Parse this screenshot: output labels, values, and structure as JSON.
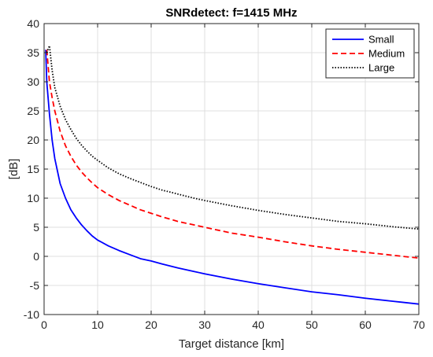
{
  "chart_data": {
    "type": "line",
    "title": "SNRdetect: f=1415 MHz",
    "xlabel": "Target distance [km]",
    "ylabel": "[dB]",
    "xlim": [
      0,
      70
    ],
    "ylim": [
      -10,
      40
    ],
    "xticks": [
      0,
      10,
      20,
      30,
      40,
      50,
      60,
      70
    ],
    "yticks": [
      -10,
      -5,
      0,
      5,
      10,
      15,
      20,
      25,
      30,
      35,
      40
    ],
    "grid": true,
    "legend_position": "top-right",
    "series": [
      {
        "name": "Small",
        "color": "#0000ff",
        "style": "solid",
        "x": [
          0.3,
          0.5,
          1,
          1.5,
          2,
          3,
          4,
          5,
          6,
          7,
          8,
          9,
          10,
          12,
          14,
          16,
          18,
          20,
          22,
          25,
          28,
          30,
          35,
          40,
          45,
          50,
          55,
          60,
          65,
          70
        ],
        "y": [
          35.5,
          30,
          24.5,
          20,
          16.8,
          12.5,
          10,
          8,
          6.6,
          5.4,
          4.4,
          3.5,
          2.8,
          1.8,
          1.0,
          0.3,
          -0.4,
          -0.8,
          -1.3,
          -2.0,
          -2.6,
          -3.0,
          -3.9,
          -4.7,
          -5.4,
          -6.1,
          -6.6,
          -7.2,
          -7.7,
          -8.2
        ]
      },
      {
        "name": "Medium",
        "color": "#ff0000",
        "style": "dashed",
        "x": [
          0.5,
          1,
          1.5,
          2,
          3,
          4,
          5,
          6,
          7,
          8,
          9,
          10,
          12,
          14,
          16,
          18,
          20,
          22,
          25,
          28,
          30,
          35,
          40,
          45,
          50,
          55,
          60,
          65,
          70
        ],
        "y": [
          35.5,
          30,
          27.3,
          25,
          21.5,
          19,
          17.2,
          15.7,
          14.5,
          13.5,
          12.6,
          11.8,
          10.6,
          9.6,
          8.8,
          8.0,
          7.4,
          6.8,
          6.0,
          5.4,
          5.0,
          4.0,
          3.3,
          2.5,
          1.8,
          1.2,
          0.7,
          0.2,
          -0.3
        ]
      },
      {
        "name": "Large",
        "color": "#000000",
        "style": "dotted",
        "x": [
          0.5,
          1,
          1.5,
          2,
          3,
          4,
          5,
          6,
          7,
          8,
          9,
          10,
          12,
          14,
          16,
          18,
          20,
          22,
          25,
          28,
          30,
          35,
          40,
          45,
          50,
          55,
          60,
          65,
          70
        ],
        "y": [
          35,
          36.2,
          32,
          29,
          25.8,
          23.5,
          21.8,
          20.3,
          19.1,
          18.1,
          17.2,
          16.5,
          15.2,
          14.2,
          13.4,
          12.7,
          12.0,
          11.4,
          10.7,
          10.0,
          9.6,
          8.7,
          7.9,
          7.2,
          6.6,
          6.0,
          5.6,
          5.1,
          4.7
        ]
      }
    ]
  }
}
